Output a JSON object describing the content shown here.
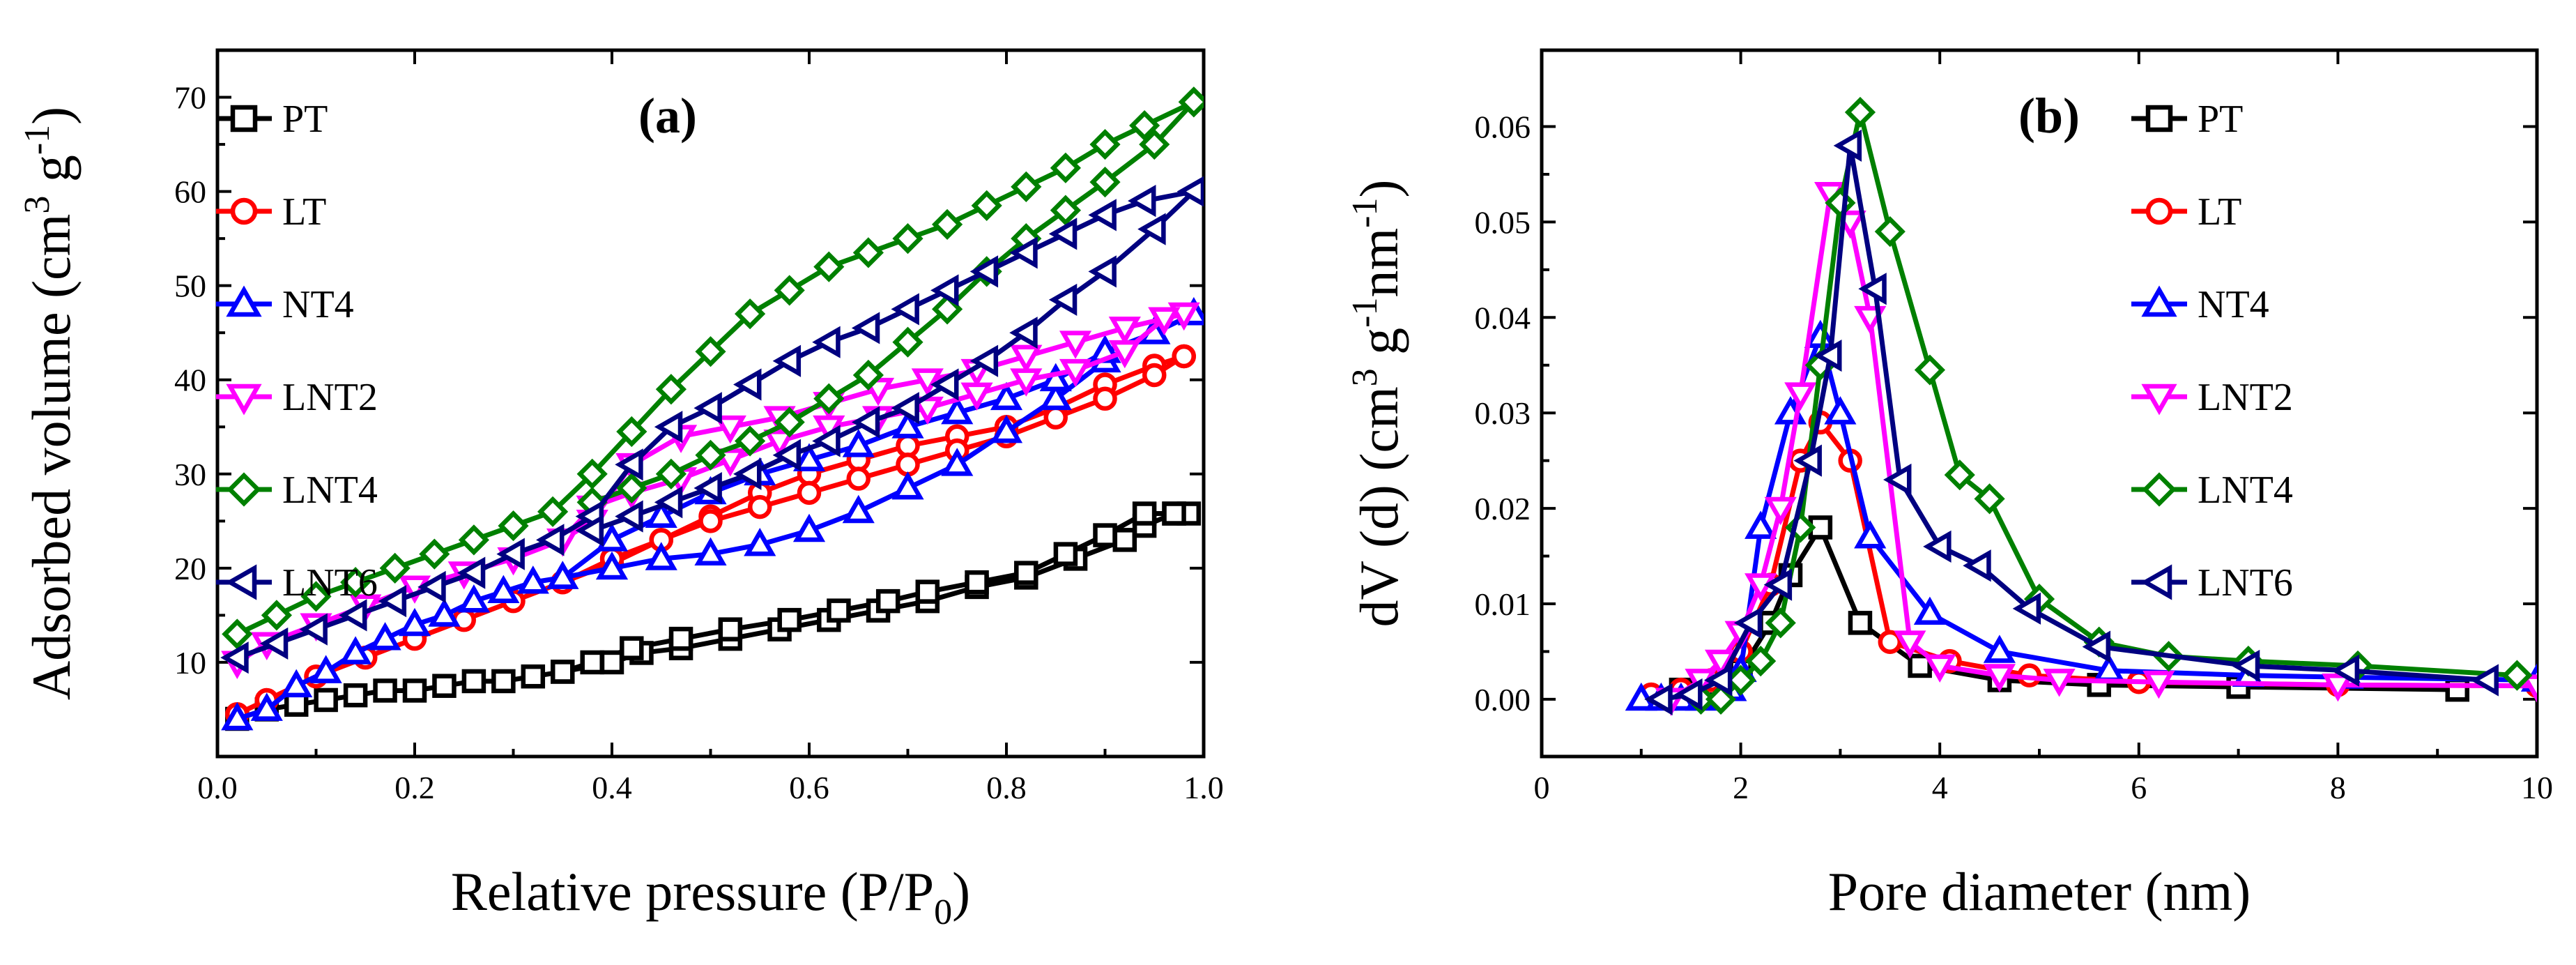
{
  "colors": {
    "PT": "#000000",
    "LT": "#ff0000",
    "NT4": "#0000ff",
    "LNT2": "#ff00ff",
    "LNT4": "#008000",
    "LNT6": "#000080"
  },
  "chart_data": [
    {
      "type": "line",
      "panel_label": "(a)",
      "xlabel": "Relative pressure (P/P",
      "xlabel_sub": "0",
      "xlabel_end": ")",
      "ylabel": "Adsorbed volume (cm",
      "ylabel_sup1": "3",
      "ylabel_mid": " g",
      "ylabel_sup2": "-1",
      "ylabel_end": ")",
      "xlim": [
        0,
        1.0
      ],
      "ylim": [
        0,
        75
      ],
      "xticks": [
        0.0,
        0.2,
        0.4,
        0.6,
        0.8,
        1.0
      ],
      "xtick_labels": [
        "0.0",
        "0.2",
        "0.4",
        "0.6",
        "0.8",
        "1.0"
      ],
      "yticks": [
        10,
        20,
        30,
        40,
        50,
        60,
        70
      ],
      "ytick_labels": [
        "10",
        "20",
        "30",
        "40",
        "50",
        "60",
        "70"
      ],
      "legend_position": "top-left",
      "series": [
        {
          "name": "PT",
          "marker": "square",
          "x": [
            0.02,
            0.05,
            0.08,
            0.11,
            0.14,
            0.17,
            0.2,
            0.23,
            0.26,
            0.29,
            0.32,
            0.35,
            0.4,
            0.43,
            0.47,
            0.52,
            0.57,
            0.62,
            0.67,
            0.72,
            0.77,
            0.82,
            0.87,
            0.92,
            0.94,
            0.97,
            0.985,
            0.97,
            0.94,
            0.9,
            0.86,
            0.82,
            0.77,
            0.72,
            0.68,
            0.63,
            0.58,
            0.52,
            0.47,
            0.42,
            0.38,
            0.35
          ],
          "y": [
            4,
            5,
            5.5,
            6,
            6.5,
            7,
            7,
            7.5,
            8,
            8,
            8.5,
            9,
            10,
            11,
            11.5,
            12.5,
            13.5,
            14.5,
            15.5,
            16.5,
            18,
            19,
            21,
            23,
            24.5,
            25.8,
            25.8,
            25.8,
            25.8,
            23.5,
            21.5,
            19.5,
            18.5,
            17.5,
            16.5,
            15.5,
            14.5,
            13.5,
            12.5,
            11.5,
            10,
            9
          ]
        },
        {
          "name": "LT",
          "marker": "circle",
          "x": [
            0.02,
            0.05,
            0.1,
            0.15,
            0.2,
            0.25,
            0.3,
            0.35,
            0.4,
            0.45,
            0.5,
            0.55,
            0.6,
            0.65,
            0.7,
            0.75,
            0.8,
            0.85,
            0.9,
            0.95,
            0.98,
            0.98,
            0.95,
            0.9,
            0.85,
            0.8,
            0.75,
            0.7,
            0.65,
            0.6,
            0.55,
            0.5,
            0.45,
            0.4,
            0.35
          ],
          "y": [
            4.5,
            6,
            8.5,
            10.5,
            12.5,
            14.5,
            16.5,
            18.5,
            20.5,
            23,
            25.5,
            28,
            30,
            31.5,
            33,
            34,
            35,
            37,
            39.5,
            41.5,
            42.5,
            42.5,
            40.5,
            38,
            36,
            34,
            32.5,
            31,
            29.5,
            28,
            26.5,
            25,
            23,
            21,
            18.5
          ]
        },
        {
          "name": "NT4",
          "marker": "triangle-up",
          "x": [
            0.02,
            0.05,
            0.08,
            0.11,
            0.14,
            0.17,
            0.2,
            0.23,
            0.26,
            0.29,
            0.32,
            0.35,
            0.4,
            0.45,
            0.5,
            0.55,
            0.6,
            0.65,
            0.7,
            0.75,
            0.8,
            0.85,
            0.9,
            0.95,
            0.99,
            0.99,
            0.95,
            0.9,
            0.85,
            0.8,
            0.75,
            0.7,
            0.65,
            0.6,
            0.55,
            0.5,
            0.45,
            0.4,
            0.35
          ],
          "y": [
            4,
            5,
            7.5,
            9,
            11,
            12.5,
            14,
            15,
            16.5,
            17.5,
            18.5,
            19,
            20,
            21,
            21.5,
            22.5,
            24,
            26,
            28.5,
            31,
            34.5,
            38,
            42,
            45,
            47,
            47,
            45,
            43,
            40,
            38,
            36.5,
            35,
            33,
            31.5,
            30,
            28,
            25.5,
            23,
            19
          ]
        },
        {
          "name": "LNT2",
          "marker": "triangle-down",
          "x": [
            0.02,
            0.05,
            0.1,
            0.15,
            0.2,
            0.25,
            0.3,
            0.35,
            0.38,
            0.42,
            0.47,
            0.52,
            0.57,
            0.62,
            0.67,
            0.72,
            0.77,
            0.82,
            0.87,
            0.92,
            0.96,
            0.98,
            0.96,
            0.92,
            0.87,
            0.82,
            0.77,
            0.72,
            0.67,
            0.62,
            0.57,
            0.52,
            0.47,
            0.42,
            0.38,
            0.35
          ],
          "y": [
            10,
            12,
            14,
            16,
            18,
            19.5,
            21,
            23,
            25,
            31,
            34,
            35,
            36,
            37.5,
            39,
            40,
            41,
            42.5,
            44,
            45.5,
            46.5,
            47,
            46.5,
            43,
            41,
            40,
            38.5,
            37,
            36,
            35,
            33.5,
            31.5,
            29.5,
            28,
            26.5,
            23
          ]
        },
        {
          "name": "LNT4",
          "marker": "diamond",
          "x": [
            0.02,
            0.06,
            0.1,
            0.14,
            0.18,
            0.22,
            0.26,
            0.3,
            0.34,
            0.38,
            0.42,
            0.46,
            0.5,
            0.54,
            0.58,
            0.62,
            0.66,
            0.7,
            0.74,
            0.78,
            0.82,
            0.86,
            0.9,
            0.94,
            0.99,
            0.99,
            0.95,
            0.9,
            0.86,
            0.82,
            0.78,
            0.74,
            0.7,
            0.66,
            0.62,
            0.58,
            0.54,
            0.5,
            0.46,
            0.42,
            0.38
          ],
          "y": [
            13,
            15,
            17,
            18.5,
            20,
            21.5,
            23,
            24.5,
            26,
            30,
            34.5,
            39,
            43,
            47,
            49.5,
            52,
            53.5,
            55,
            56.5,
            58.5,
            60.5,
            62.5,
            65,
            67,
            69.5,
            69.5,
            65,
            61,
            58,
            55,
            51.5,
            47.5,
            44,
            40.5,
            38,
            35.5,
            33.5,
            32,
            30,
            28.5,
            27
          ]
        },
        {
          "name": "LNT6",
          "marker": "triangle-left",
          "x": [
            0.02,
            0.06,
            0.1,
            0.14,
            0.18,
            0.22,
            0.26,
            0.3,
            0.34,
            0.38,
            0.42,
            0.46,
            0.5,
            0.54,
            0.58,
            0.62,
            0.66,
            0.7,
            0.74,
            0.78,
            0.82,
            0.86,
            0.9,
            0.94,
            0.99,
            0.99,
            0.95,
            0.9,
            0.86,
            0.82,
            0.78,
            0.74,
            0.7,
            0.66,
            0.62,
            0.58,
            0.54,
            0.5,
            0.46,
            0.42,
            0.38
          ],
          "y": [
            10.5,
            12,
            13.5,
            15,
            16.5,
            18,
            19.5,
            21.5,
            23,
            25.5,
            31,
            35,
            37,
            39.5,
            42,
            44,
            45.5,
            47.5,
            49.5,
            51.5,
            53.5,
            55.5,
            57.5,
            59,
            60,
            60,
            56,
            51.5,
            48.5,
            45,
            42,
            39.5,
            37,
            35.5,
            33.5,
            32,
            30,
            28.5,
            27,
            25.5,
            24
          ]
        }
      ]
    },
    {
      "type": "line",
      "panel_label": "(b)",
      "xlabel": "Pore diameter (nm)",
      "ylabel": "dV (d) (cm",
      "ylabel_sup1": "3",
      "ylabel_mid": " g",
      "ylabel_sup2": "-1",
      "ylabel_mid2": "nm",
      "ylabel_sup3": "-1",
      "ylabel_end": ")",
      "xlim": [
        0,
        10
      ],
      "ylim": [
        -0.006,
        0.068
      ],
      "xticks": [
        0,
        2,
        4,
        6,
        8,
        10
      ],
      "xtick_labels": [
        "0",
        "2",
        "4",
        "6",
        "8",
        "10"
      ],
      "yticks": [
        0.0,
        0.01,
        0.02,
        0.03,
        0.04,
        0.05,
        0.06
      ],
      "ytick_labels": [
        "0.00",
        "0.01",
        "0.02",
        "0.03",
        "0.04",
        "0.05",
        "0.06"
      ],
      "legend_position": "top-right",
      "series": [
        {
          "name": "PT",
          "marker": "square",
          "x": [
            1.4,
            1.7,
            2.0,
            2.3,
            2.5,
            2.8,
            3.2,
            3.8,
            4.6,
            5.6,
            7.0,
            9.2
          ],
          "y": [
            0.001,
            0.0015,
            0.003,
            0.008,
            0.013,
            0.018,
            0.008,
            0.0035,
            0.002,
            0.0015,
            0.0013,
            0.001
          ]
        },
        {
          "name": "LT",
          "marker": "circle",
          "x": [
            1.1,
            1.4,
            1.7,
            2.0,
            2.3,
            2.6,
            2.8,
            3.1,
            3.5,
            4.1,
            4.9,
            6.0,
            8.0,
            10.0
          ],
          "y": [
            0.0005,
            0.001,
            0.002,
            0.005,
            0.012,
            0.025,
            0.029,
            0.025,
            0.006,
            0.004,
            0.0025,
            0.0018,
            0.0015,
            0.0014
          ]
        },
        {
          "name": "NT4",
          "marker": "triangle-up",
          "x": [
            1.0,
            1.2,
            1.4,
            1.6,
            1.9,
            2.0,
            2.2,
            2.5,
            2.8,
            3.0,
            3.3,
            3.9,
            4.6,
            5.7,
            7.1,
            8.1,
            10.0
          ],
          "y": [
            0.0,
            0.0,
            0.0,
            0.0,
            0.001,
            0.003,
            0.018,
            0.03,
            0.038,
            0.03,
            0.017,
            0.009,
            0.005,
            0.003,
            0.0025,
            0.0023,
            0.002
          ]
        },
        {
          "name": "LNT2",
          "marker": "triangle-down",
          "x": [
            1.3,
            1.6,
            1.8,
            2.0,
            2.2,
            2.4,
            2.6,
            2.9,
            3.1,
            3.3,
            3.7,
            4.0,
            4.6,
            5.2,
            6.2,
            8.0,
            10.0
          ],
          "y": [
            0.0,
            0.002,
            0.004,
            0.007,
            0.012,
            0.02,
            0.032,
            0.053,
            0.05,
            0.04,
            0.006,
            0.0035,
            0.0025,
            0.002,
            0.0018,
            0.0015,
            0.0014
          ]
        },
        {
          "name": "LNT4",
          "marker": "diamond",
          "x": [
            1.6,
            1.8,
            2.0,
            2.2,
            2.4,
            2.6,
            2.8,
            3.0,
            3.2,
            3.5,
            3.9,
            4.2,
            4.5,
            5.0,
            5.6,
            6.3,
            7.1,
            8.2,
            9.8
          ],
          "y": [
            0.0,
            0.0,
            0.002,
            0.004,
            0.008,
            0.018,
            0.035,
            0.052,
            0.0615,
            0.049,
            0.0345,
            0.0235,
            0.021,
            0.0105,
            0.006,
            0.0045,
            0.004,
            0.0035,
            0.0025
          ]
        },
        {
          "name": "LNT6",
          "marker": "triangle-left",
          "x": [
            1.2,
            1.5,
            1.8,
            2.1,
            2.4,
            2.7,
            2.9,
            3.1,
            3.35,
            3.6,
            4.0,
            4.4,
            4.9,
            5.6,
            7.1,
            8.1,
            9.5
          ],
          "y": [
            0.0,
            0.0005,
            0.002,
            0.008,
            0.012,
            0.025,
            0.036,
            0.058,
            0.043,
            0.023,
            0.016,
            0.014,
            0.0095,
            0.0055,
            0.0035,
            0.003,
            0.002
          ]
        }
      ]
    }
  ]
}
